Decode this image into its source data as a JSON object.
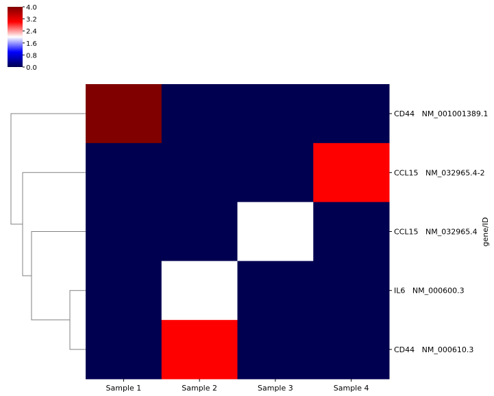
{
  "chart_data": {
    "type": "heatmap",
    "columns": [
      "Sample 1",
      "Sample 2",
      "Sample 3",
      "Sample 4"
    ],
    "rows": [
      "CD44   NM_001001389.1",
      "CCL15   NM_032965.4-2",
      "CCL15   NM_032965.4",
      "IL6   NM_000600.3",
      "CD44   NM_000610.3"
    ],
    "values": [
      [
        4.0,
        0.0,
        0.0,
        0.0
      ],
      [
        0.0,
        0.0,
        0.0,
        3.0
      ],
      [
        0.0,
        0.0,
        2.0,
        0.0
      ],
      [
        0.0,
        2.0,
        0.0,
        0.0
      ],
      [
        0.0,
        3.0,
        0.0,
        0.0
      ]
    ],
    "ylabel": "gene/ID",
    "colorbar": {
      "range": [
        0.0,
        4.0
      ],
      "ticks": [
        "0.0",
        "0.8",
        "1.6",
        "2.4",
        "3.2",
        "4.0"
      ],
      "colormap": [
        "#000050",
        "#0000ff",
        "#ffffff",
        "#ff0000",
        "#800000"
      ]
    },
    "row_dendrogram": true,
    "grid": false
  }
}
